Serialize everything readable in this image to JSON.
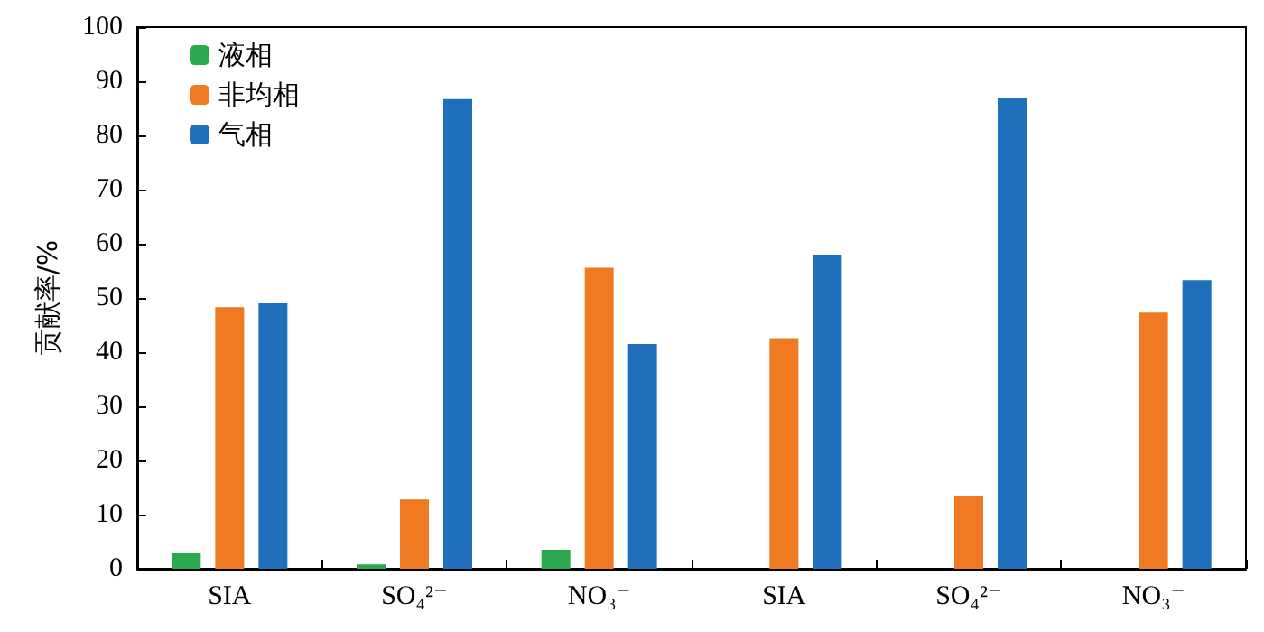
{
  "chart_data": {
    "type": "bar",
    "ylabel": "贡献率/%",
    "categories": [
      "SIA",
      "SO₄²⁻",
      "NO₃⁻",
      "SIA",
      "SO₄²⁻",
      "NO₃⁻"
    ],
    "series": [
      {
        "name": "液相",
        "color": "#2ca94f",
        "values": [
          3,
          0.8,
          3.5,
          0,
          0,
          0
        ]
      },
      {
        "name": "非均相",
        "color": "#f07a22",
        "values": [
          48.3,
          12.8,
          55.6,
          42.6,
          13.5,
          47.3
        ]
      },
      {
        "name": "气相",
        "color": "#1f6fba",
        "values": [
          49,
          86.7,
          41.5,
          58,
          87,
          53.3
        ]
      }
    ],
    "ylim": [
      0,
      100
    ],
    "yticks": [
      0,
      10,
      20,
      30,
      40,
      50,
      60,
      70,
      80,
      90,
      100
    ],
    "grid": false,
    "legend": "top left"
  }
}
